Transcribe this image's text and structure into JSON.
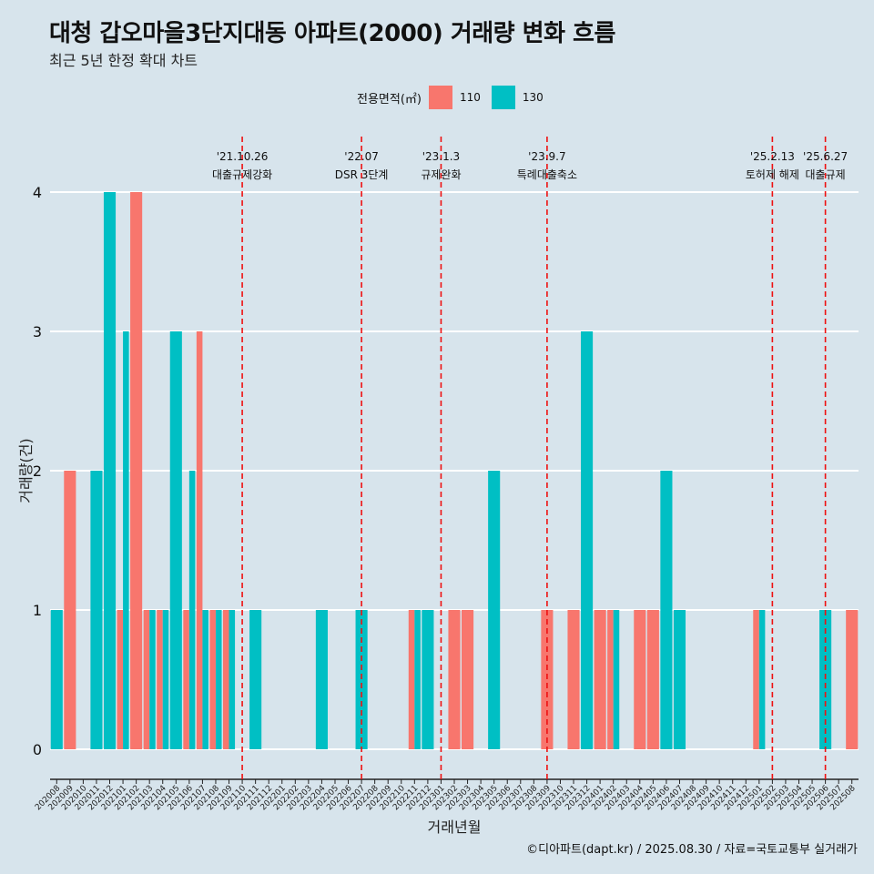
{
  "title": "대청 갑오마을3단지대동 아파트(2000) 거래량 변화 흐름",
  "subtitle": "최근 5년 한정 확대 차트",
  "caption": "©디아파트(dapt.kr) / 2025.08.30 / 자료=국토교통부 실거래가",
  "legend": {
    "title": "전용면적(㎡)",
    "items": [
      {
        "label": "110",
        "color": "#f8766d"
      },
      {
        "label": "130",
        "color": "#00bfc4"
      }
    ]
  },
  "chart_data": {
    "type": "bar",
    "xlabel": "거래년월",
    "ylabel": "거래량(건)",
    "ylim": [
      0,
      4
    ],
    "yticks": [
      0,
      1,
      2,
      3,
      4
    ],
    "categories": [
      "202008",
      "202009",
      "202010",
      "202011",
      "202012",
      "202101",
      "202102",
      "202103",
      "202104",
      "202105",
      "202106",
      "202107",
      "202108",
      "202109",
      "202110",
      "202111",
      "202112",
      "202201",
      "202202",
      "202203",
      "202204",
      "202205",
      "202206",
      "202207",
      "202208",
      "202209",
      "202210",
      "202211",
      "202212",
      "202301",
      "202302",
      "202303",
      "202304",
      "202305",
      "202306",
      "202307",
      "202308",
      "202309",
      "202310",
      "202311",
      "202312",
      "202401",
      "202402",
      "202403",
      "202404",
      "202405",
      "202406",
      "202407",
      "202408",
      "202409",
      "202410",
      "202411",
      "202412",
      "202501",
      "202502",
      "202503",
      "202504",
      "202505",
      "202506",
      "202507",
      "202508"
    ],
    "series": [
      {
        "name": "110",
        "color": "#f8766d",
        "values": [
          0,
          2,
          0,
          0,
          0,
          1,
          4,
          1,
          1,
          0,
          1,
          3,
          1,
          1,
          0,
          0,
          0,
          0,
          0,
          0,
          0,
          0,
          0,
          0,
          0,
          0,
          0,
          1,
          0,
          0,
          1,
          1,
          0,
          0,
          0,
          0,
          0,
          1,
          0,
          1,
          0,
          1,
          1,
          0,
          1,
          1,
          0,
          0,
          0,
          0,
          0,
          0,
          0,
          1,
          0,
          0,
          0,
          0,
          0,
          0,
          1
        ]
      },
      {
        "name": "130",
        "color": "#00bfc4",
        "values": [
          1,
          0,
          0,
          2,
          4,
          3,
          0,
          1,
          1,
          3,
          2,
          1,
          1,
          1,
          0,
          1,
          0,
          0,
          0,
          0,
          1,
          0,
          0,
          1,
          0,
          0,
          0,
          1,
          1,
          0,
          0,
          0,
          0,
          2,
          0,
          0,
          0,
          0,
          0,
          0,
          3,
          0,
          1,
          0,
          0,
          0,
          2,
          1,
          0,
          0,
          0,
          0,
          0,
          1,
          0,
          0,
          0,
          0,
          1,
          0,
          0
        ]
      }
    ],
    "events": [
      {
        "date": "'21.10.26",
        "label": "대출규제강화",
        "month": "202110"
      },
      {
        "date": "'22.07",
        "label": "DSR 3단계",
        "month": "202207"
      },
      {
        "date": "'23.1.3",
        "label": "규제완화",
        "month": "202301"
      },
      {
        "date": "'23.9.7",
        "label": "특례대출축소",
        "month": "202309"
      },
      {
        "date": "'25.2.13",
        "label": "토허제 해제",
        "month": "202502"
      },
      {
        "date": "'25.6.27",
        "label": "대출규제",
        "month": "202506"
      }
    ],
    "grid": true
  }
}
